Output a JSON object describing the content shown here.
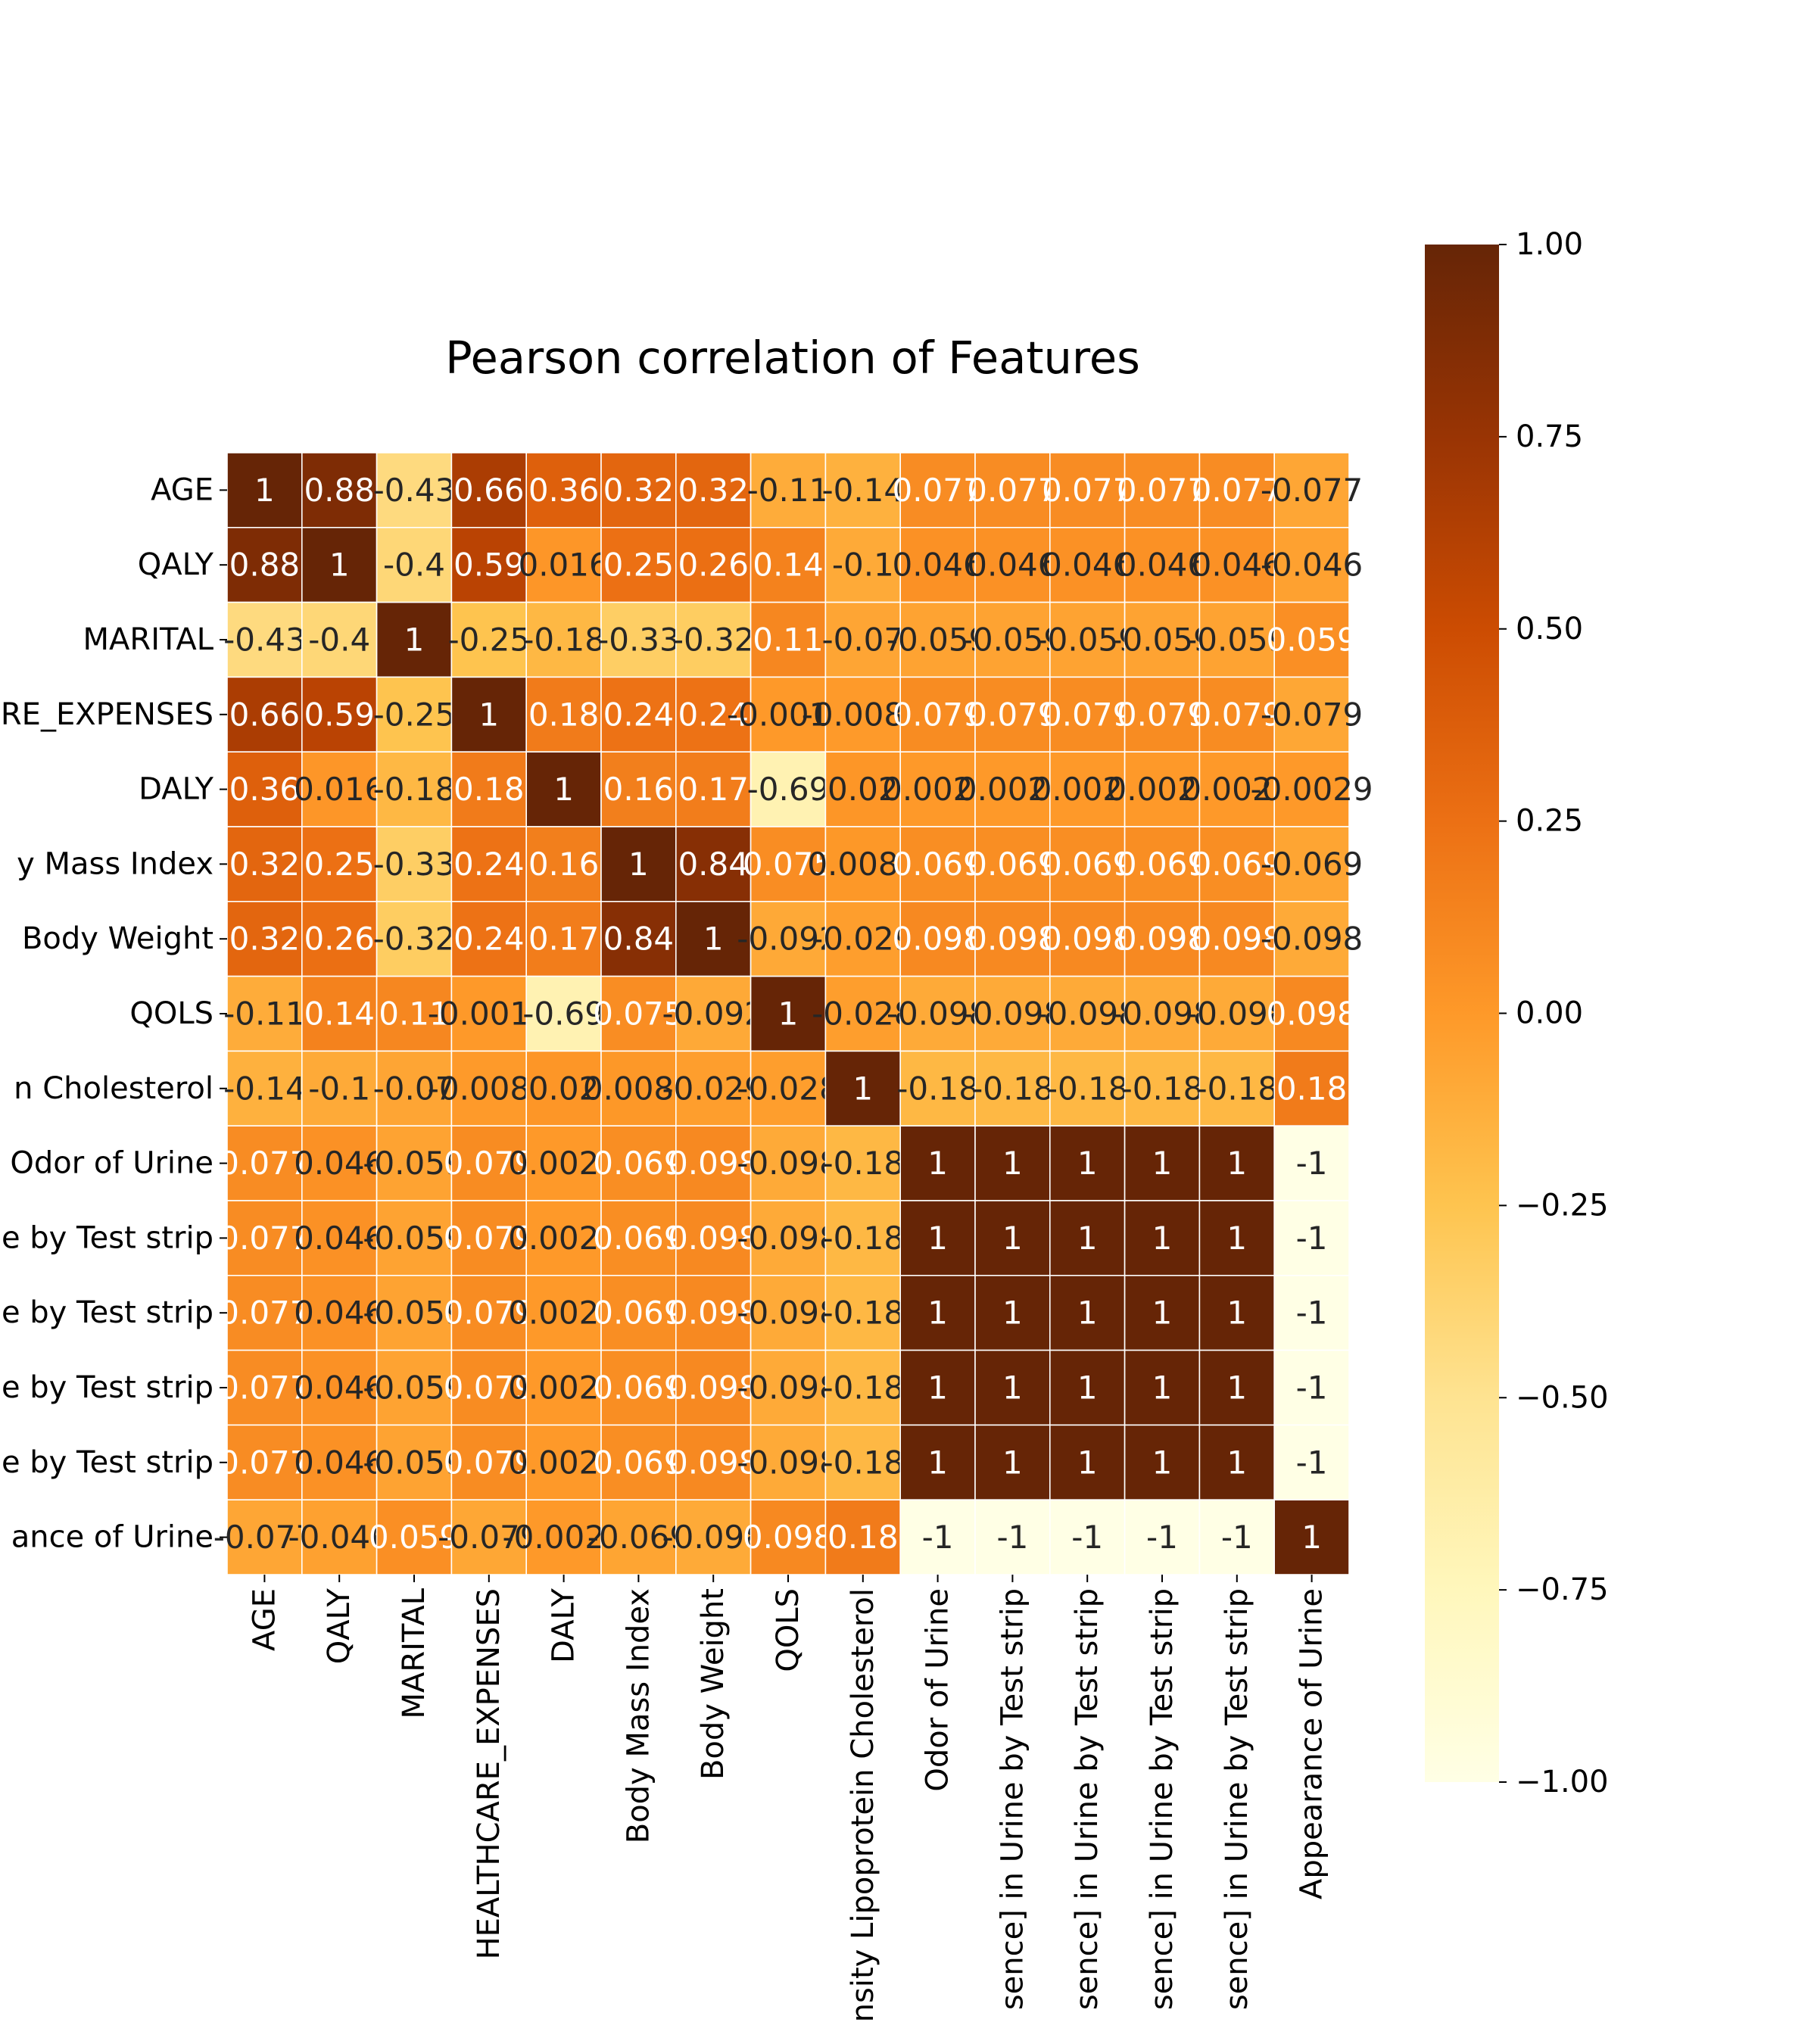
{
  "chart_data": {
    "type": "heatmap",
    "title": "Pearson correlation of Features",
    "x_tick_labels": [
      "AGE",
      "QALY",
      "MARITAL",
      "HEALTHCARE_EXPENSES",
      "DALY",
      "Body Mass Index",
      "Body Weight",
      "QOLS",
      "nsity Lipoprotein Cholesterol",
      "Odor of Urine",
      "sence] in Urine by Test strip",
      "sence] in Urine by Test strip",
      "sence] in Urine by Test strip",
      "sence] in Urine by Test strip",
      "Appearance of Urine"
    ],
    "y_tick_labels": [
      "AGE",
      "QALY",
      "MARITAL",
      "RE_EXPENSES",
      "DALY",
      "y Mass Index",
      "Body Weight",
      "QOLS",
      "n Cholesterol",
      "Odor of Urine",
      "e by Test strip",
      "e by Test strip",
      "e by Test strip",
      "e by Test strip",
      "ance of Urine"
    ],
    "values": [
      [
        1,
        0.88,
        -0.43,
        0.66,
        0.36,
        0.32,
        0.32,
        -0.11,
        -0.14,
        0.077,
        0.077,
        0.077,
        0.077,
        0.077,
        -0.077
      ],
      [
        0.88,
        1,
        -0.4,
        0.59,
        0.016,
        0.25,
        0.26,
        0.14,
        -0.1,
        0.046,
        0.046,
        0.046,
        0.046,
        0.046,
        -0.046
      ],
      [
        -0.43,
        -0.4,
        1,
        -0.25,
        -0.18,
        -0.33,
        -0.32,
        0.11,
        -0.07,
        -0.059,
        -0.059,
        -0.059,
        -0.059,
        -0.059,
        0.059
      ],
      [
        0.66,
        0.59,
        -0.25,
        1,
        0.18,
        0.24,
        0.24,
        -0.0011,
        -0.0082,
        0.079,
        0.079,
        0.079,
        0.079,
        0.079,
        -0.079
      ],
      [
        0.36,
        0.016,
        -0.18,
        0.18,
        1,
        0.16,
        0.17,
        -0.69,
        0.02,
        0.0029,
        0.0029,
        0.0029,
        0.0029,
        0.0029,
        -0.0029
      ],
      [
        0.32,
        0.25,
        -0.33,
        0.24,
        0.16,
        1,
        0.84,
        0.075,
        0.0089,
        0.069,
        0.069,
        0.069,
        0.069,
        0.069,
        -0.069
      ],
      [
        0.32,
        0.26,
        -0.32,
        0.24,
        0.17,
        0.84,
        1,
        -0.092,
        -0.029,
        0.098,
        0.098,
        0.098,
        0.098,
        0.098,
        -0.098
      ],
      [
        -0.11,
        0.14,
        0.11,
        -0.0011,
        -0.69,
        0.075,
        -0.092,
        1,
        -0.028,
        -0.098,
        -0.098,
        -0.098,
        -0.098,
        -0.098,
        0.098
      ],
      [
        -0.14,
        -0.1,
        -0.07,
        -0.0082,
        0.02,
        0.0089,
        -0.029,
        -0.028,
        1,
        -0.18,
        -0.18,
        -0.18,
        -0.18,
        -0.18,
        0.18
      ],
      [
        0.077,
        0.046,
        -0.059,
        0.079,
        0.0029,
        0.069,
        0.098,
        -0.098,
        -0.18,
        1,
        1,
        1,
        1,
        1,
        -1
      ],
      [
        0.077,
        0.046,
        -0.059,
        0.079,
        0.0029,
        0.069,
        0.098,
        -0.098,
        -0.18,
        1,
        1,
        1,
        1,
        1,
        -1
      ],
      [
        0.077,
        0.046,
        -0.059,
        0.079,
        0.0029,
        0.069,
        0.098,
        -0.098,
        -0.18,
        1,
        1,
        1,
        1,
        1,
        -1
      ],
      [
        0.077,
        0.046,
        -0.059,
        0.079,
        0.0029,
        0.069,
        0.098,
        -0.098,
        -0.18,
        1,
        1,
        1,
        1,
        1,
        -1
      ],
      [
        0.077,
        0.046,
        -0.059,
        0.079,
        0.0029,
        0.069,
        0.098,
        -0.098,
        -0.18,
        1,
        1,
        1,
        1,
        1,
        -1
      ],
      [
        -0.077,
        -0.046,
        0.059,
        -0.079,
        -0.0029,
        -0.069,
        -0.098,
        0.098,
        0.18,
        -1,
        -1,
        -1,
        -1,
        -1,
        1
      ]
    ],
    "value_range": [
      -1,
      1
    ],
    "colormap": "YlOrBr",
    "colormap_stops": [
      "#ffffe5",
      "#fff7bc",
      "#fee391",
      "#fec44f",
      "#fe9929",
      "#ec7014",
      "#cc4c02",
      "#993404",
      "#662506"
    ],
    "colorbar": {
      "ticks": [
        1.0,
        0.75,
        0.5,
        0.25,
        0.0,
        -0.25,
        -0.5,
        -0.75,
        -1.0
      ],
      "tick_labels": [
        "1.00",
        "0.75",
        "0.50",
        "0.25",
        "0.00",
        "−0.25",
        "−0.50",
        "−0.75",
        "−1.00"
      ]
    },
    "grid_line_color": "#ffffff",
    "annotation_light_color": "#ffffff",
    "annotation_dark_color": "#262626"
  }
}
